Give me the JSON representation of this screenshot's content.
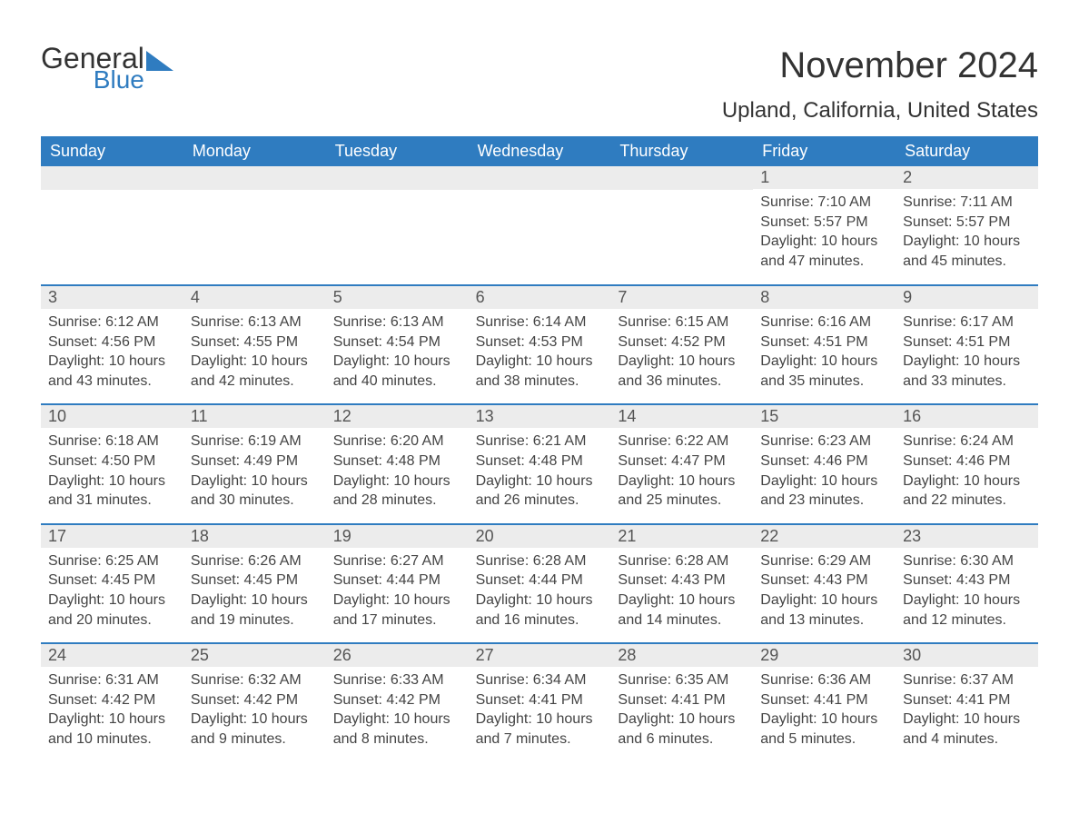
{
  "logo": {
    "general": "General",
    "blue": "Blue",
    "shape_color": "#2f7cc0"
  },
  "title": "November 2024",
  "location": "Upland, California, United States",
  "header_bg": "#2f7cc0",
  "daynum_bg": "#ececec",
  "text_color": "#333333",
  "daynames": [
    "Sunday",
    "Monday",
    "Tuesday",
    "Wednesday",
    "Thursday",
    "Friday",
    "Saturday"
  ],
  "weeks": [
    [
      null,
      null,
      null,
      null,
      null,
      {
        "day": "1",
        "sunrise": "Sunrise: 7:10 AM",
        "sunset": "Sunset: 5:57 PM",
        "daylight": "Daylight: 10 hours and 47 minutes."
      },
      {
        "day": "2",
        "sunrise": "Sunrise: 7:11 AM",
        "sunset": "Sunset: 5:57 PM",
        "daylight": "Daylight: 10 hours and 45 minutes."
      }
    ],
    [
      {
        "day": "3",
        "sunrise": "Sunrise: 6:12 AM",
        "sunset": "Sunset: 4:56 PM",
        "daylight": "Daylight: 10 hours and 43 minutes."
      },
      {
        "day": "4",
        "sunrise": "Sunrise: 6:13 AM",
        "sunset": "Sunset: 4:55 PM",
        "daylight": "Daylight: 10 hours and 42 minutes."
      },
      {
        "day": "5",
        "sunrise": "Sunrise: 6:13 AM",
        "sunset": "Sunset: 4:54 PM",
        "daylight": "Daylight: 10 hours and 40 minutes."
      },
      {
        "day": "6",
        "sunrise": "Sunrise: 6:14 AM",
        "sunset": "Sunset: 4:53 PM",
        "daylight": "Daylight: 10 hours and 38 minutes."
      },
      {
        "day": "7",
        "sunrise": "Sunrise: 6:15 AM",
        "sunset": "Sunset: 4:52 PM",
        "daylight": "Daylight: 10 hours and 36 minutes."
      },
      {
        "day": "8",
        "sunrise": "Sunrise: 6:16 AM",
        "sunset": "Sunset: 4:51 PM",
        "daylight": "Daylight: 10 hours and 35 minutes."
      },
      {
        "day": "9",
        "sunrise": "Sunrise: 6:17 AM",
        "sunset": "Sunset: 4:51 PM",
        "daylight": "Daylight: 10 hours and 33 minutes."
      }
    ],
    [
      {
        "day": "10",
        "sunrise": "Sunrise: 6:18 AM",
        "sunset": "Sunset: 4:50 PM",
        "daylight": "Daylight: 10 hours and 31 minutes."
      },
      {
        "day": "11",
        "sunrise": "Sunrise: 6:19 AM",
        "sunset": "Sunset: 4:49 PM",
        "daylight": "Daylight: 10 hours and 30 minutes."
      },
      {
        "day": "12",
        "sunrise": "Sunrise: 6:20 AM",
        "sunset": "Sunset: 4:48 PM",
        "daylight": "Daylight: 10 hours and 28 minutes."
      },
      {
        "day": "13",
        "sunrise": "Sunrise: 6:21 AM",
        "sunset": "Sunset: 4:48 PM",
        "daylight": "Daylight: 10 hours and 26 minutes."
      },
      {
        "day": "14",
        "sunrise": "Sunrise: 6:22 AM",
        "sunset": "Sunset: 4:47 PM",
        "daylight": "Daylight: 10 hours and 25 minutes."
      },
      {
        "day": "15",
        "sunrise": "Sunrise: 6:23 AM",
        "sunset": "Sunset: 4:46 PM",
        "daylight": "Daylight: 10 hours and 23 minutes."
      },
      {
        "day": "16",
        "sunrise": "Sunrise: 6:24 AM",
        "sunset": "Sunset: 4:46 PM",
        "daylight": "Daylight: 10 hours and 22 minutes."
      }
    ],
    [
      {
        "day": "17",
        "sunrise": "Sunrise: 6:25 AM",
        "sunset": "Sunset: 4:45 PM",
        "daylight": "Daylight: 10 hours and 20 minutes."
      },
      {
        "day": "18",
        "sunrise": "Sunrise: 6:26 AM",
        "sunset": "Sunset: 4:45 PM",
        "daylight": "Daylight: 10 hours and 19 minutes."
      },
      {
        "day": "19",
        "sunrise": "Sunrise: 6:27 AM",
        "sunset": "Sunset: 4:44 PM",
        "daylight": "Daylight: 10 hours and 17 minutes."
      },
      {
        "day": "20",
        "sunrise": "Sunrise: 6:28 AM",
        "sunset": "Sunset: 4:44 PM",
        "daylight": "Daylight: 10 hours and 16 minutes."
      },
      {
        "day": "21",
        "sunrise": "Sunrise: 6:28 AM",
        "sunset": "Sunset: 4:43 PM",
        "daylight": "Daylight: 10 hours and 14 minutes."
      },
      {
        "day": "22",
        "sunrise": "Sunrise: 6:29 AM",
        "sunset": "Sunset: 4:43 PM",
        "daylight": "Daylight: 10 hours and 13 minutes."
      },
      {
        "day": "23",
        "sunrise": "Sunrise: 6:30 AM",
        "sunset": "Sunset: 4:43 PM",
        "daylight": "Daylight: 10 hours and 12 minutes."
      }
    ],
    [
      {
        "day": "24",
        "sunrise": "Sunrise: 6:31 AM",
        "sunset": "Sunset: 4:42 PM",
        "daylight": "Daylight: 10 hours and 10 minutes."
      },
      {
        "day": "25",
        "sunrise": "Sunrise: 6:32 AM",
        "sunset": "Sunset: 4:42 PM",
        "daylight": "Daylight: 10 hours and 9 minutes."
      },
      {
        "day": "26",
        "sunrise": "Sunrise: 6:33 AM",
        "sunset": "Sunset: 4:42 PM",
        "daylight": "Daylight: 10 hours and 8 minutes."
      },
      {
        "day": "27",
        "sunrise": "Sunrise: 6:34 AM",
        "sunset": "Sunset: 4:41 PM",
        "daylight": "Daylight: 10 hours and 7 minutes."
      },
      {
        "day": "28",
        "sunrise": "Sunrise: 6:35 AM",
        "sunset": "Sunset: 4:41 PM",
        "daylight": "Daylight: 10 hours and 6 minutes."
      },
      {
        "day": "29",
        "sunrise": "Sunrise: 6:36 AM",
        "sunset": "Sunset: 4:41 PM",
        "daylight": "Daylight: 10 hours and 5 minutes."
      },
      {
        "day": "30",
        "sunrise": "Sunrise: 6:37 AM",
        "sunset": "Sunset: 4:41 PM",
        "daylight": "Daylight: 10 hours and 4 minutes."
      }
    ]
  ]
}
